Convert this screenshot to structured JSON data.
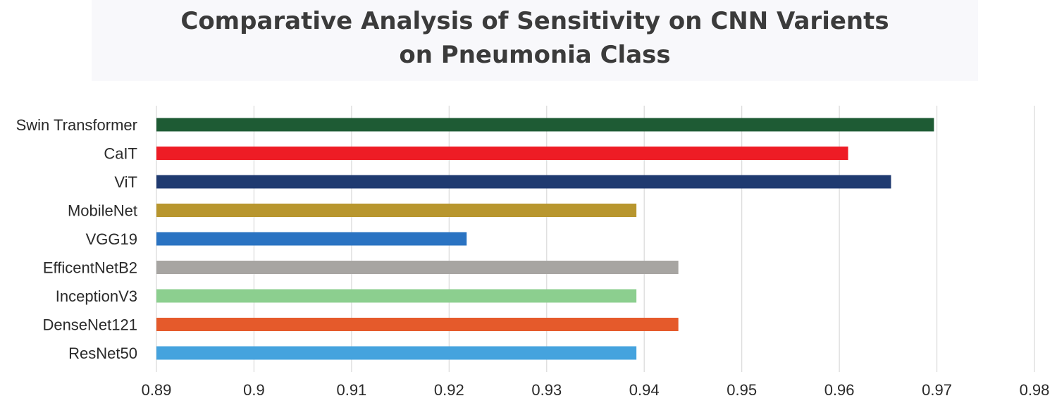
{
  "chart_data": {
    "type": "bar",
    "orientation": "horizontal",
    "title_lines": [
      "Comparative Analysis of Sensitivity on CNN Varients",
      "on Pneumonia Class"
    ],
    "categories": [
      "Swin Transformer",
      "CaIT",
      "ViT",
      "MobileNet",
      "VGG19",
      "EfficentNetB2",
      "InceptionV3",
      "DenseNet121",
      "ResNet50"
    ],
    "values": [
      0.9697,
      0.9609,
      0.9653,
      0.9392,
      0.9218,
      0.9435,
      0.9392,
      0.9435,
      0.9392
    ],
    "colors": [
      "#1e5b34",
      "#ee1c25",
      "#1f3a70",
      "#b8962e",
      "#2a73c2",
      "#a7a5a2",
      "#8ccf8f",
      "#e55a2b",
      "#45a3de"
    ],
    "xlim": [
      0.89,
      0.98
    ],
    "x_ticks": [
      "0.89",
      "0.9",
      "0.91",
      "0.92",
      "0.93",
      "0.94",
      "0.95",
      "0.96",
      "0.97",
      "0.98"
    ],
    "xlabel": "",
    "ylabel": "",
    "grid": "vertical",
    "legend": "none"
  }
}
